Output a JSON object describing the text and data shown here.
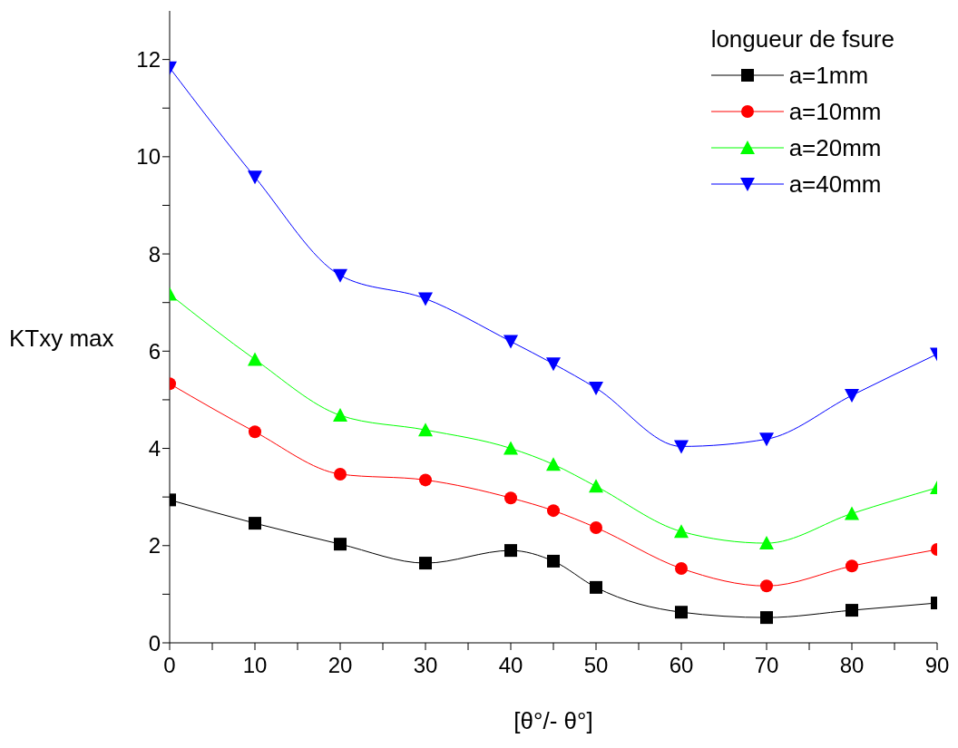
{
  "chart_data": {
    "type": "line",
    "xlabel": "[θ°/- θ°]",
    "ylabel": "KTxy max",
    "legend_title": "longueur de fsure",
    "legend": "top right",
    "grid": false,
    "line_style": "solid",
    "x": [
      0,
      10,
      20,
      30,
      40,
      45,
      50,
      60,
      70,
      80,
      90
    ],
    "xlim": [
      0,
      90
    ],
    "xticks": [
      0,
      {
        "value": 5,
        "label": null
      },
      10,
      {
        "value": 15,
        "label": null
      },
      20,
      {
        "value": 25,
        "label": null
      },
      30,
      {
        "value": 35,
        "label": null
      },
      40,
      {
        "value": 45,
        "label": null
      },
      50,
      {
        "value": 55,
        "label": null
      },
      60,
      {
        "value": 65,
        "label": null
      },
      70,
      {
        "value": 75,
        "label": null
      },
      80,
      {
        "value": 85,
        "label": null
      },
      90
    ],
    "ylim": [
      0,
      13
    ],
    "yticks": [
      0,
      {
        "value": 1,
        "label": null
      },
      2,
      {
        "value": 3,
        "label": null
      },
      4,
      {
        "value": 5,
        "label": null
      },
      6,
      {
        "value": 7,
        "label": null
      },
      8,
      {
        "value": 9,
        "label": null
      },
      10,
      {
        "value": 11,
        "label": null
      },
      12
    ],
    "series": [
      {
        "name": "a=1mm",
        "color": "#000000",
        "marker": "square",
        "values": [
          2.94,
          2.46,
          2.03,
          1.64,
          1.9,
          1.68,
          1.14,
          0.63,
          0.52,
          0.67,
          0.82
        ]
      },
      {
        "name": "a=10mm",
        "color": "#ff0000",
        "marker": "circle",
        "values": [
          5.33,
          4.34,
          3.47,
          3.35,
          2.98,
          2.72,
          2.37,
          1.53,
          1.17,
          1.58,
          1.92
        ]
      },
      {
        "name": "a=20mm",
        "color": "#00ff00",
        "marker": "triangle",
        "values": [
          7.17,
          5.83,
          4.68,
          4.38,
          4.0,
          3.67,
          3.22,
          2.29,
          2.05,
          2.66,
          3.19
        ]
      },
      {
        "name": "a=40mm",
        "color": "#0000ff",
        "marker": "triangle-down",
        "values": [
          11.83,
          9.58,
          7.56,
          7.08,
          6.2,
          5.74,
          5.24,
          4.04,
          4.19,
          5.09,
          5.94
        ]
      }
    ]
  }
}
